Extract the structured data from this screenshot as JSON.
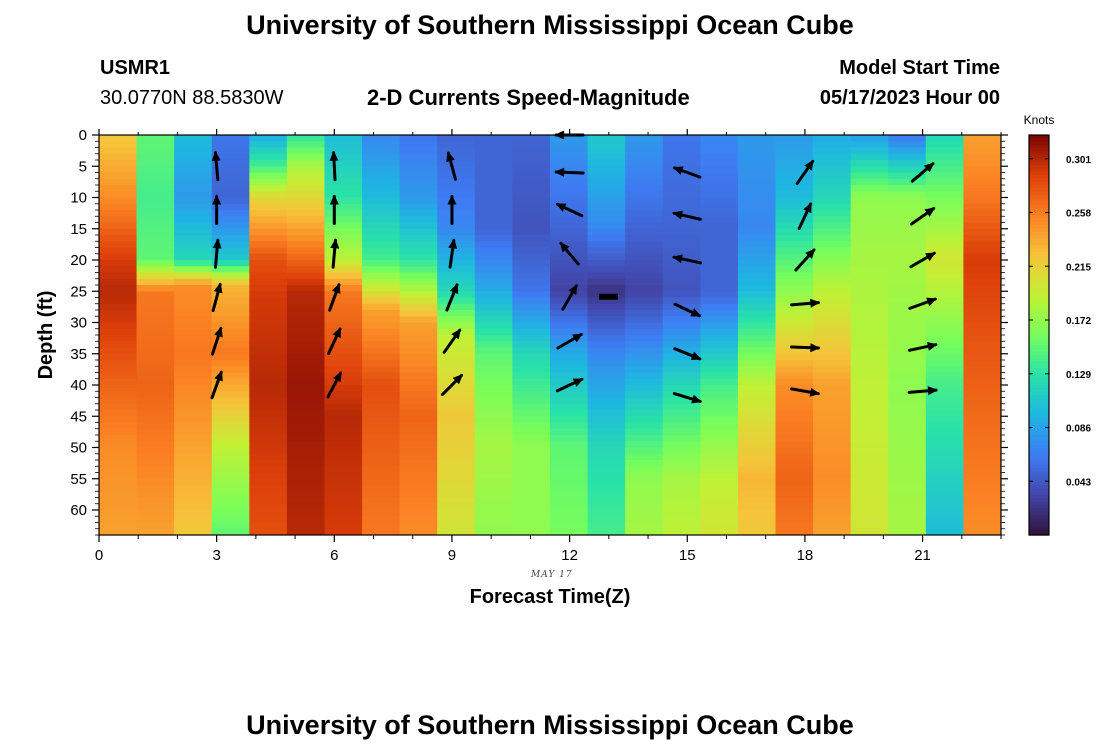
{
  "header": {
    "title": "University of Southern Mississippi Ocean Cube",
    "station_id": "USMR1",
    "coordinates": "30.0770N  88.5830W",
    "product": "2-D Currents Speed-Magnitude",
    "model_start_label": "Model Start Time",
    "model_start_value": "05/17/2023 Hour 00",
    "footer_title": "University of Southern Mississippi Ocean Cube"
  },
  "chart_data": {
    "type": "heatmap",
    "xlabel": "Forecast Time(Z)",
    "ylabel": "Depth (ft)",
    "date_label": "MAY 17",
    "x_range": [
      0,
      23
    ],
    "y_range": [
      0,
      64
    ],
    "y_inverted": true,
    "x_ticks": [
      0,
      3,
      6,
      9,
      12,
      15,
      18,
      21
    ],
    "y_ticks": [
      0,
      5,
      10,
      15,
      20,
      25,
      30,
      35,
      40,
      45,
      50,
      55,
      60
    ],
    "colorbar": {
      "title": "Knots",
      "ticks": [
        "0.301",
        "0.258",
        "0.215",
        "0.172",
        "0.129",
        "0.086",
        "0.043"
      ],
      "range": [
        0,
        0.32
      ]
    },
    "profiles": [
      {
        "hour": 0,
        "depths": [
          0,
          10,
          15,
          20,
          25,
          35,
          50,
          64
        ],
        "speeds": [
          0.22,
          0.25,
          0.27,
          0.29,
          0.3,
          0.28,
          0.25,
          0.24
        ]
      },
      {
        "hour": 1,
        "depths": [
          0,
          10,
          20,
          25,
          40,
          64
        ],
        "speeds": [
          0.15,
          0.14,
          0.15,
          0.26,
          0.27,
          0.24
        ]
      },
      {
        "hour": 2,
        "depths": [
          0,
          10,
          20,
          24,
          35,
          64
        ],
        "speeds": [
          0.1,
          0.08,
          0.12,
          0.25,
          0.26,
          0.22
        ]
      },
      {
        "hour": 3,
        "depths": [
          0,
          10,
          20,
          24,
          35,
          50,
          64
        ],
        "speeds": [
          0.06,
          0.05,
          0.11,
          0.23,
          0.26,
          0.19,
          0.15
        ]
      },
      {
        "hour": 4,
        "depths": [
          0,
          5,
          10,
          20,
          25,
          40,
          64
        ],
        "speeds": [
          0.09,
          0.14,
          0.21,
          0.28,
          0.29,
          0.3,
          0.28
        ]
      },
      {
        "hour": 5,
        "depths": [
          0,
          5,
          15,
          25,
          40,
          64
        ],
        "speeds": [
          0.13,
          0.18,
          0.24,
          0.3,
          0.31,
          0.3
        ]
      },
      {
        "hour": 6,
        "depths": [
          0,
          10,
          20,
          25,
          45,
          64
        ],
        "speeds": [
          0.1,
          0.13,
          0.19,
          0.26,
          0.3,
          0.29
        ]
      },
      {
        "hour": 7,
        "depths": [
          0,
          10,
          20,
          28,
          40,
          64
        ],
        "speeds": [
          0.07,
          0.1,
          0.14,
          0.24,
          0.28,
          0.26
        ]
      },
      {
        "hour": 8,
        "depths": [
          0,
          10,
          20,
          30,
          45,
          64
        ],
        "speeds": [
          0.06,
          0.08,
          0.13,
          0.24,
          0.27,
          0.25
        ]
      },
      {
        "hour": 9,
        "depths": [
          0,
          15,
          25,
          32,
          45,
          64
        ],
        "speeds": [
          0.05,
          0.07,
          0.12,
          0.19,
          0.22,
          0.2
        ]
      },
      {
        "hour": 10,
        "depths": [
          0,
          15,
          25,
          35,
          50,
          64
        ],
        "speeds": [
          0.05,
          0.05,
          0.09,
          0.15,
          0.18,
          0.17
        ]
      },
      {
        "hour": 11,
        "depths": [
          0,
          15,
          25,
          35,
          50,
          64
        ],
        "speeds": [
          0.05,
          0.04,
          0.06,
          0.12,
          0.17,
          0.17
        ]
      },
      {
        "hour": 12,
        "depths": [
          0,
          15,
          25,
          35,
          50,
          64
        ],
        "speeds": [
          0.08,
          0.05,
          0.03,
          0.09,
          0.15,
          0.16
        ]
      },
      {
        "hour": 13,
        "depths": [
          0,
          15,
          25,
          35,
          50,
          64
        ],
        "speeds": [
          0.11,
          0.07,
          0.02,
          0.07,
          0.12,
          0.14
        ]
      },
      {
        "hour": 14,
        "depths": [
          0,
          15,
          25,
          40,
          55,
          64
        ],
        "speeds": [
          0.08,
          0.05,
          0.03,
          0.1,
          0.17,
          0.18
        ]
      },
      {
        "hour": 15,
        "depths": [
          0,
          15,
          25,
          40,
          55,
          64
        ],
        "speeds": [
          0.06,
          0.05,
          0.04,
          0.12,
          0.18,
          0.19
        ]
      },
      {
        "hour": 16,
        "depths": [
          0,
          15,
          25,
          40,
          55,
          64
        ],
        "speeds": [
          0.07,
          0.05,
          0.05,
          0.14,
          0.19,
          0.2
        ]
      },
      {
        "hour": 17,
        "depths": [
          0,
          15,
          25,
          40,
          55,
          64
        ],
        "speeds": [
          0.08,
          0.07,
          0.1,
          0.19,
          0.23,
          0.22
        ]
      },
      {
        "hour": 18,
        "depths": [
          0,
          10,
          25,
          40,
          55,
          64
        ],
        "speeds": [
          0.08,
          0.1,
          0.17,
          0.25,
          0.27,
          0.26
        ]
      },
      {
        "hour": 19,
        "depths": [
          0,
          10,
          25,
          40,
          55,
          64
        ],
        "speeds": [
          0.09,
          0.12,
          0.19,
          0.24,
          0.25,
          0.24
        ]
      },
      {
        "hour": 20,
        "depths": [
          0,
          10,
          20,
          40,
          64
        ],
        "speeds": [
          0.08,
          0.17,
          0.18,
          0.19,
          0.2
        ]
      },
      {
        "hour": 21,
        "depths": [
          0,
          10,
          20,
          40,
          64
        ],
        "speeds": [
          0.06,
          0.17,
          0.18,
          0.17,
          0.18
        ]
      },
      {
        "hour": 22,
        "depths": [
          0,
          10,
          20,
          40,
          64
        ],
        "speeds": [
          0.12,
          0.16,
          0.2,
          0.14,
          0.1
        ]
      },
      {
        "hour": 23,
        "depths": [
          0,
          10,
          20,
          30,
          64
        ],
        "speeds": [
          0.24,
          0.26,
          0.29,
          0.28,
          0.25
        ]
      }
    ],
    "vectors": [
      {
        "hour": 3,
        "depths": [
          5,
          12,
          19,
          26,
          33,
          40
        ],
        "directions_deg": [
          355,
          0,
          5,
          15,
          18,
          20
        ]
      },
      {
        "hour": 6,
        "depths": [
          5,
          12,
          19,
          26,
          33,
          40
        ],
        "directions_deg": [
          357,
          0,
          5,
          20,
          25,
          28
        ]
      },
      {
        "hour": 9,
        "depths": [
          5,
          12,
          19,
          26,
          33,
          40
        ],
        "directions_deg": [
          345,
          0,
          8,
          22,
          35,
          45
        ]
      },
      {
        "hour": 12,
        "depths": [
          0,
          6,
          12,
          19,
          26,
          33,
          40
        ],
        "directions_deg": [
          270,
          272,
          295,
          320,
          30,
          60,
          65
        ]
      },
      {
        "hour": 15,
        "depths": [
          6,
          13,
          20,
          28,
          35,
          42
        ],
        "directions_deg": [
          290,
          283,
          282,
          115,
          112,
          107
        ]
      },
      {
        "hour": 18,
        "depths": [
          6,
          13,
          20,
          27,
          34,
          41
        ],
        "directions_deg": [
          35,
          25,
          42,
          85,
          92,
          100
        ]
      },
      {
        "hour": 21,
        "depths": [
          6,
          13,
          20,
          27,
          34,
          41
        ],
        "directions_deg": [
          50,
          55,
          60,
          70,
          78,
          85
        ]
      }
    ]
  }
}
